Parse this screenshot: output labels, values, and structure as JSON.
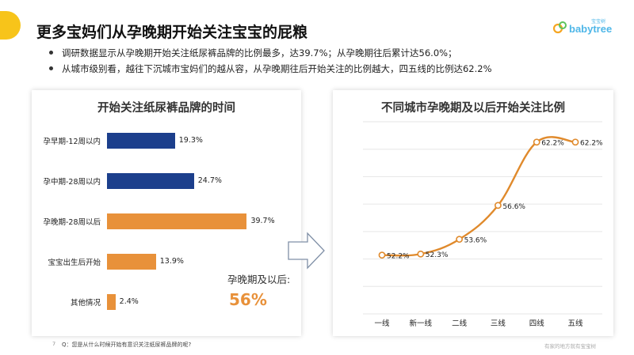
{
  "page": {
    "title": "更多宝妈们从孕晚期开始关注宝宝的屁粮",
    "bullets": [
      "调研数据显示从孕晚期开始关注纸尿裤品牌的比例最多，达39.7%；从孕晚期往后累计达56.0%；",
      "从城市级别看，越往下沉城市宝妈们的越从容，从孕晚期往后开始关注的比例越大，四五线的比例达62.2%"
    ],
    "logo_text": "babytree",
    "logo_sub": "宝宝树",
    "footer_page": "7",
    "footer_question": "Q：您是从什么时候开始有意识关注纸尿裤品牌的呢?",
    "footer_right": "有家的地方就有宝宝树",
    "callout_label": "孕晚期及以后:",
    "callout_value": "56%"
  },
  "colors": {
    "accent": "#f7c41a",
    "navy": "#1c3f8c",
    "orange": "#e8913a",
    "line": "#e08a2c"
  },
  "chart_data": [
    {
      "type": "bar",
      "orientation": "horizontal",
      "title": "开始关注纸尿裤品牌的时间",
      "categories": [
        "孕早期-12周以内",
        "孕中期-28周以内",
        "孕晚期-28周以后",
        "宝宝出生后开始",
        "其他情况"
      ],
      "values": [
        19.3,
        24.7,
        39.7,
        13.9,
        2.4
      ],
      "value_labels": [
        "19.3%",
        "24.7%",
        "39.7%",
        "13.9%",
        "2.4%"
      ],
      "bar_colors": [
        "#1c3f8c",
        "#1c3f8c",
        "#e8913a",
        "#e8913a",
        "#e8913a"
      ],
      "xlim": [
        0,
        45
      ]
    },
    {
      "type": "line",
      "title": "不同城市孕晚期及以后开始关注比例",
      "categories": [
        "一线",
        "新一线",
        "二线",
        "三线",
        "四线",
        "五线"
      ],
      "values": [
        52.2,
        52.3,
        53.6,
        56.6,
        62.2,
        62.2
      ],
      "value_labels": [
        "52.2%",
        "52.3%",
        "53.6%",
        "56.6%",
        "62.2%",
        "62.2%"
      ],
      "ylim": [
        47,
        64
      ],
      "grid": true
    }
  ]
}
